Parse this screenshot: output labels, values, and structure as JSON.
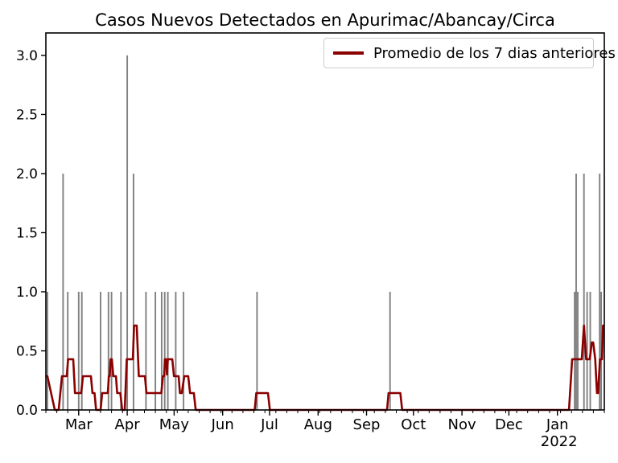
{
  "legend": {
    "label": "Promedio de los 7 dias anteriores"
  },
  "colors": {
    "avg_line": "#8b0000",
    "bars": "#808080",
    "axes": "#000000",
    "text": "#000000",
    "legend_border": "#cccccc",
    "background": "#ffffff"
  },
  "chart_data": {
    "type": "bar+line",
    "title": "Casos Nuevos Detectados en Apurimac/Abancay/Circa",
    "ylabel": "",
    "xlabel": "",
    "ylim": [
      0,
      3.19
    ],
    "yticks": [
      "0.0",
      "0.5",
      "1.0",
      "1.5",
      "2.0",
      "2.5",
      "3.0"
    ],
    "x_start_date": "2021-02-08",
    "x_end_date": "2022-01-31",
    "minor_tick_every_days": 7,
    "month_ticks": [
      {
        "label": "Mar",
        "date": "2021-03-01"
      },
      {
        "label": "Apr",
        "date": "2021-04-01"
      },
      {
        "label": "May",
        "date": "2021-05-01"
      },
      {
        "label": "Jun",
        "date": "2021-06-01"
      },
      {
        "label": "Jul",
        "date": "2021-07-01"
      },
      {
        "label": "Aug",
        "date": "2021-08-01"
      },
      {
        "label": "Sep",
        "date": "2021-09-01"
      },
      {
        "label": "Oct",
        "date": "2021-10-01"
      },
      {
        "label": "Nov",
        "date": "2021-11-01"
      },
      {
        "label": "Dec",
        "date": "2021-12-01"
      },
      {
        "label": "Jan",
        "date": "2022-01-01",
        "year": "2022"
      }
    ],
    "bars_daily_cases": [
      [
        "2021-02-09",
        1
      ],
      [
        "2021-02-19",
        2
      ],
      [
        "2021-02-22",
        1
      ],
      [
        "2021-03-01",
        1
      ],
      [
        "2021-03-03",
        1
      ],
      [
        "2021-03-15",
        1
      ],
      [
        "2021-03-20",
        1
      ],
      [
        "2021-03-22",
        1
      ],
      [
        "2021-03-28",
        1
      ],
      [
        "2021-04-01",
        3
      ],
      [
        "2021-04-05",
        2
      ],
      [
        "2021-04-13",
        1
      ],
      [
        "2021-04-19",
        1
      ],
      [
        "2021-04-23",
        1
      ],
      [
        "2021-04-25",
        1
      ],
      [
        "2021-04-27",
        1
      ],
      [
        "2021-05-02",
        1
      ],
      [
        "2021-05-07",
        1
      ],
      [
        "2021-06-23",
        1
      ],
      [
        "2021-09-16",
        1
      ],
      [
        "2022-01-12",
        1
      ],
      [
        "2022-01-13",
        2
      ],
      [
        "2022-01-14",
        1
      ],
      [
        "2022-01-18",
        2
      ],
      [
        "2022-01-20",
        1
      ],
      [
        "2022-01-22",
        1
      ],
      [
        "2022-01-28",
        2
      ],
      [
        "2022-01-29",
        1
      ]
    ],
    "avg7_line_points": [
      [
        0,
        0.286
      ],
      [
        1,
        0.286
      ],
      [
        5.7,
        0
      ],
      [
        8.2,
        0
      ],
      [
        10.3,
        0.286
      ],
      [
        13.4,
        0.286
      ],
      [
        14.2,
        0.429
      ],
      [
        17.5,
        0.429
      ],
      [
        18.6,
        0.143
      ],
      [
        22.6,
        0.143
      ],
      [
        23.7,
        0.286
      ],
      [
        28.8,
        0.286
      ],
      [
        29.8,
        0.143
      ],
      [
        31.1,
        0.143
      ],
      [
        32.1,
        0
      ],
      [
        35,
        0
      ],
      [
        36,
        0.143
      ],
      [
        39.6,
        0.143
      ],
      [
        40.3,
        0.286
      ],
      [
        40.8,
        0.286
      ],
      [
        41.4,
        0.429
      ],
      [
        42.2,
        0.429
      ],
      [
        43.1,
        0.286
      ],
      [
        44.8,
        0.286
      ],
      [
        45.6,
        0.143
      ],
      [
        47.6,
        0.143
      ],
      [
        48.8,
        0
      ],
      [
        50.4,
        0
      ],
      [
        51.7,
        0.429
      ],
      [
        55.6,
        0.429
      ],
      [
        56.4,
        0.714
      ],
      [
        58.1,
        0.714
      ],
      [
        59.4,
        0.286
      ],
      [
        63.3,
        0.286
      ],
      [
        64.3,
        0.143
      ],
      [
        73.8,
        0.143
      ],
      [
        74.8,
        0.286
      ],
      [
        75.6,
        0.286
      ],
      [
        76.1,
        0.429
      ],
      [
        76.9,
        0.429
      ],
      [
        77.4,
        0.3
      ],
      [
        78,
        0.429
      ],
      [
        80.8,
        0.429
      ],
      [
        81.9,
        0.286
      ],
      [
        84.9,
        0.286
      ],
      [
        85.7,
        0.143
      ],
      [
        86.9,
        0.143
      ],
      [
        88.5,
        0.286
      ],
      [
        91,
        0.286
      ],
      [
        92.2,
        0.143
      ],
      [
        94.6,
        0.143
      ],
      [
        95.8,
        0
      ],
      [
        133.5,
        0
      ],
      [
        134.5,
        0.143
      ],
      [
        142,
        0.143
      ],
      [
        143.2,
        0
      ],
      [
        218.1,
        0
      ],
      [
        219.1,
        0.143
      ],
      [
        226.6,
        0.143
      ],
      [
        227.8,
        0
      ],
      [
        334.4,
        0
      ],
      [
        336.4,
        0.429
      ],
      [
        342.6,
        0.429
      ],
      [
        344,
        0.714
      ],
      [
        345.4,
        0.429
      ],
      [
        347.7,
        0.429
      ],
      [
        349,
        0.571
      ],
      [
        349.9,
        0.571
      ],
      [
        351.2,
        0.429
      ],
      [
        352.3,
        0.143
      ],
      [
        353,
        0.143
      ],
      [
        354.2,
        0.429
      ],
      [
        355.5,
        0.429
      ],
      [
        356.2,
        0.714
      ],
      [
        357,
        0.714
      ]
    ]
  }
}
